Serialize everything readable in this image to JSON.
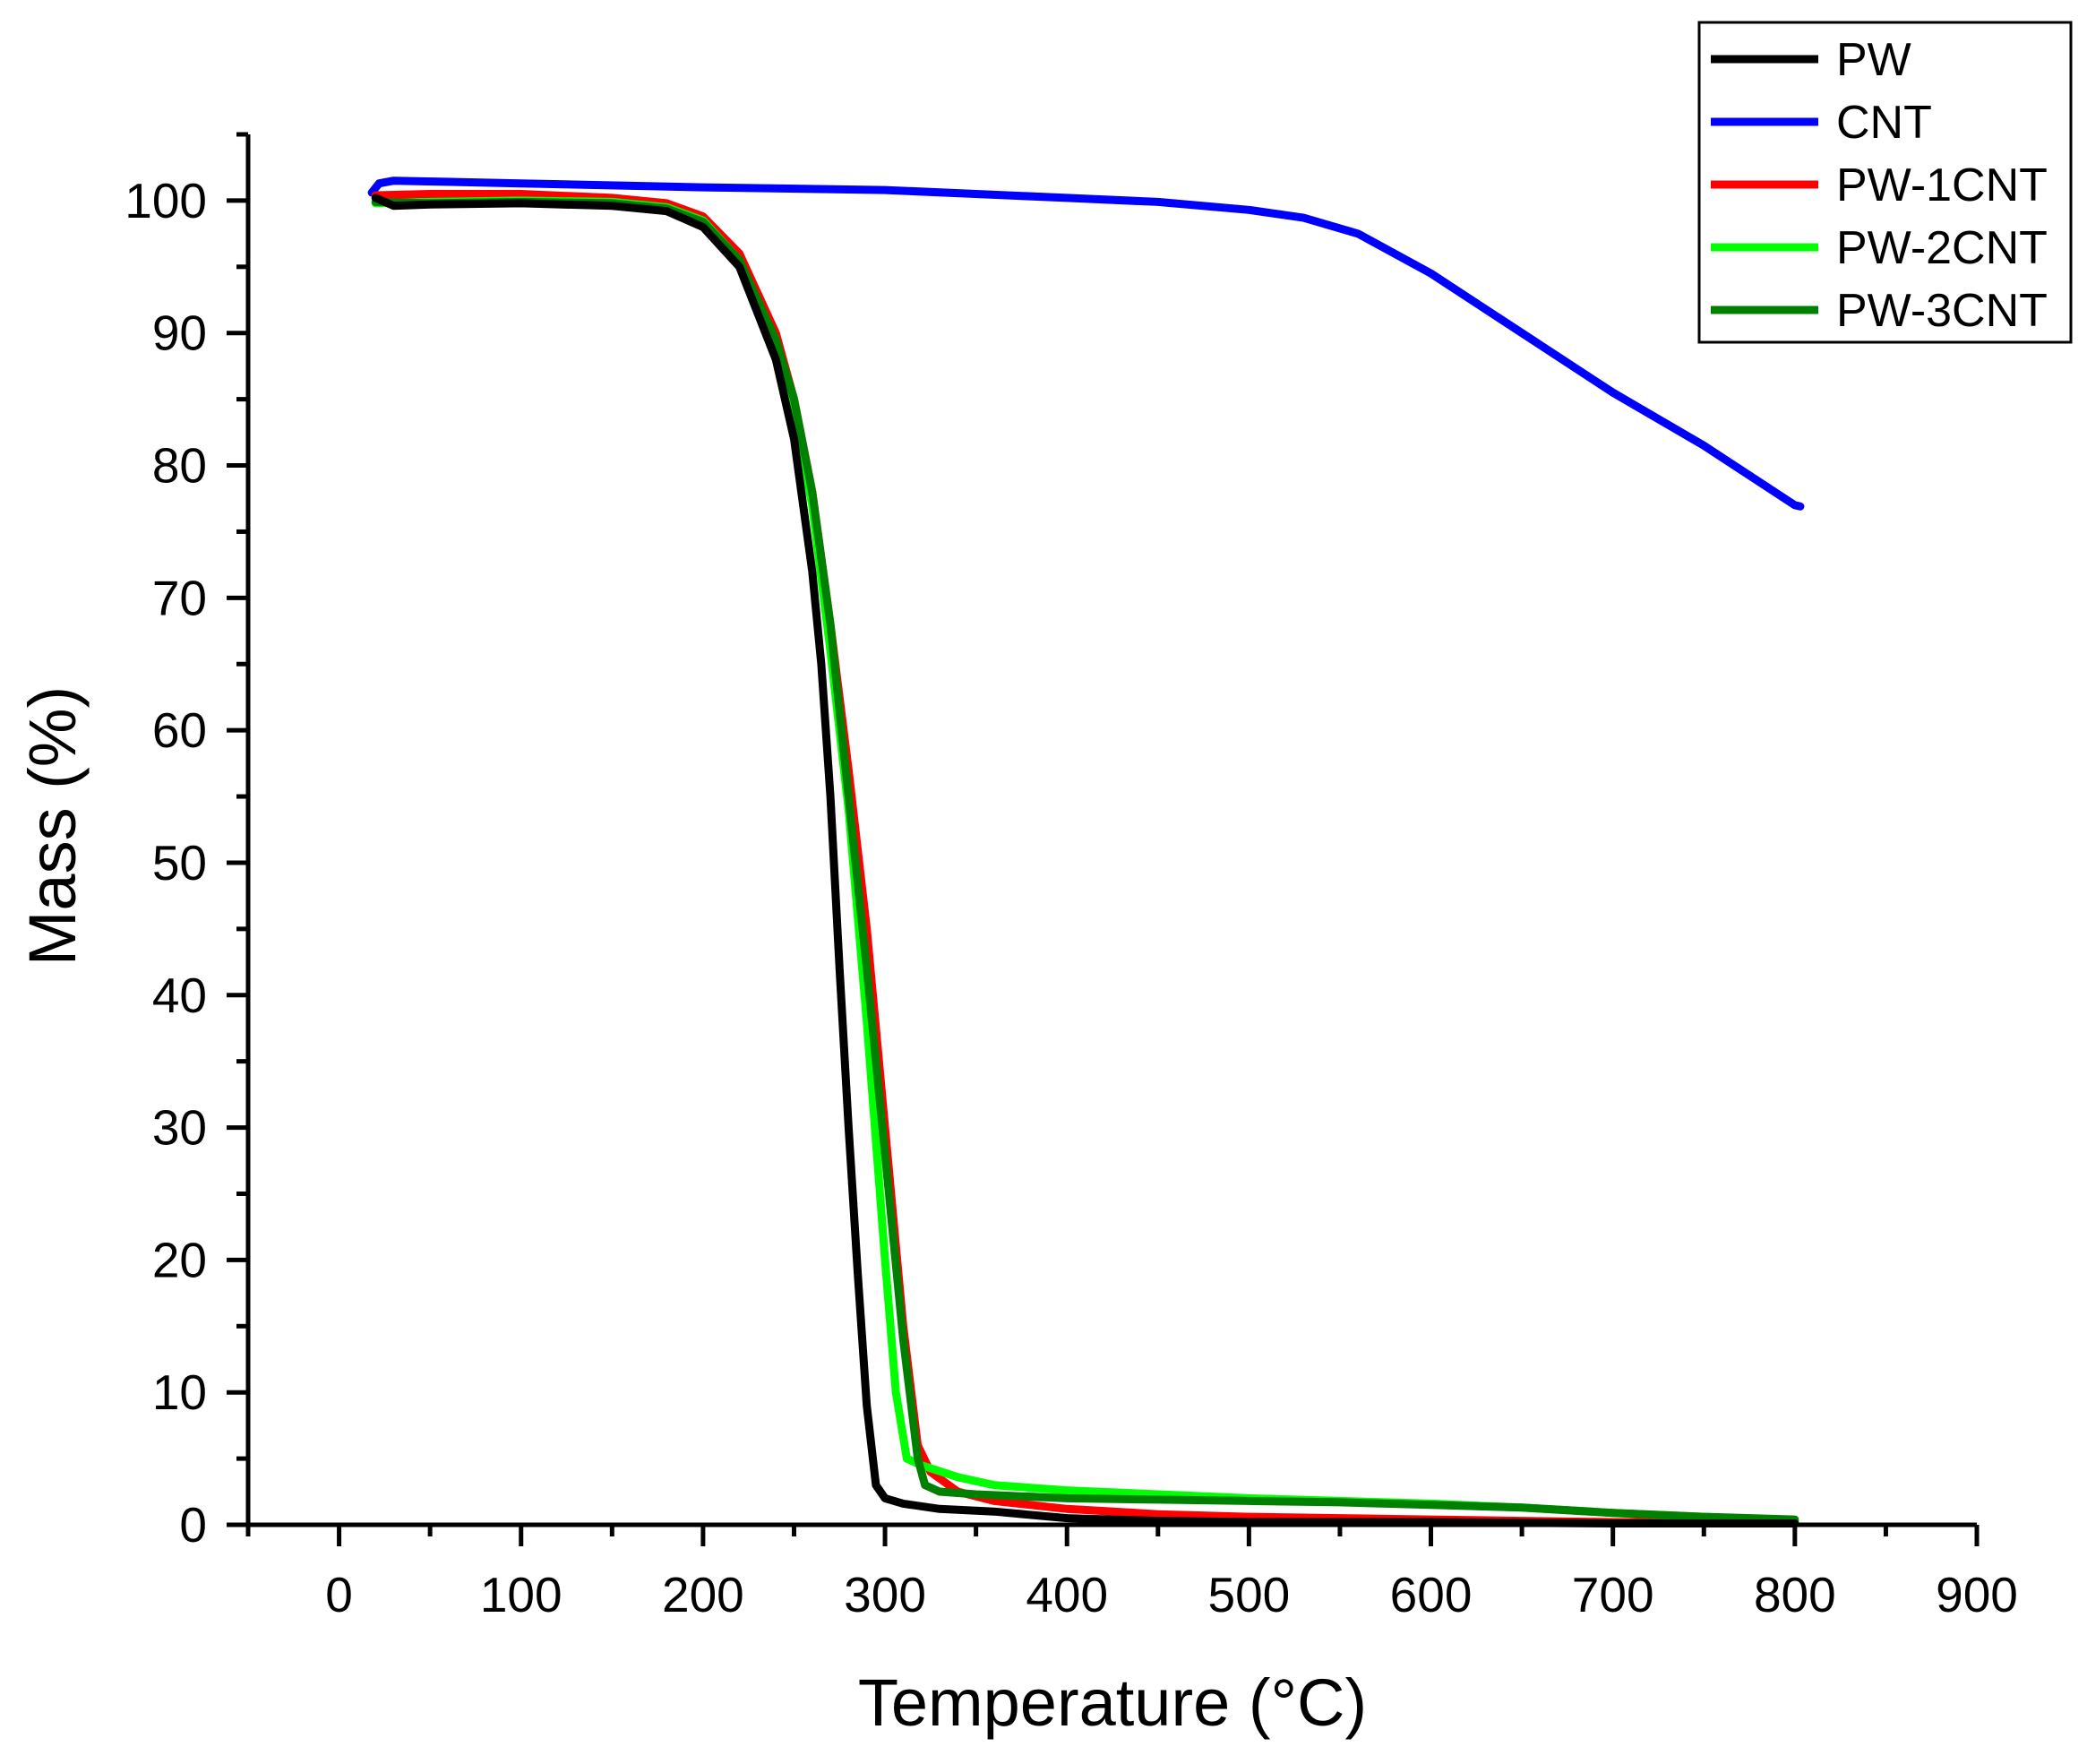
{
  "chart_data": {
    "type": "line",
    "title": "",
    "xlabel": "Temperature (°C)",
    "ylabel": "Mass (%)",
    "xlim": [
      -50,
      900
    ],
    "ylim": [
      0,
      105
    ],
    "x_ticks": [
      0,
      100,
      200,
      300,
      400,
      500,
      600,
      700,
      800,
      900
    ],
    "x_tick_labels": [
      "0",
      "100",
      "200",
      "300",
      "400",
      "500",
      "600",
      "700",
      "800",
      "900"
    ],
    "x_minor_ticks": [
      -50,
      50,
      150,
      250,
      350,
      450,
      550,
      650,
      750,
      850
    ],
    "y_ticks": [
      0,
      10,
      20,
      30,
      40,
      50,
      60,
      70,
      80,
      90,
      100
    ],
    "y_tick_labels": [
      "0",
      "10",
      "20",
      "30",
      "40",
      "50",
      "60",
      "70",
      "80",
      "90",
      "100"
    ],
    "y_minor_ticks": [
      5,
      15,
      25,
      35,
      45,
      55,
      65,
      75,
      85,
      95,
      105
    ],
    "grid": false,
    "legend_position": "top-right",
    "series": [
      {
        "name": "PW",
        "color": "#000000",
        "points": [
          [
            20,
            100.2
          ],
          [
            30,
            99.6
          ],
          [
            50,
            99.7
          ],
          [
            100,
            99.8
          ],
          [
            150,
            99.6
          ],
          [
            180,
            99.2
          ],
          [
            200,
            98.0
          ],
          [
            220,
            95.0
          ],
          [
            240,
            88.0
          ],
          [
            250,
            82.0
          ],
          [
            260,
            72.0
          ],
          [
            265,
            65.0
          ],
          [
            270,
            55.0
          ],
          [
            275,
            42.0
          ],
          [
            280,
            30.0
          ],
          [
            285,
            19.0
          ],
          [
            290,
            9.0
          ],
          [
            295,
            3.0
          ],
          [
            300,
            2.0
          ],
          [
            310,
            1.6
          ],
          [
            330,
            1.2
          ],
          [
            360,
            1.0
          ],
          [
            400,
            0.5
          ],
          [
            450,
            0.3
          ],
          [
            500,
            0.2
          ],
          [
            600,
            0.2
          ],
          [
            700,
            0.1
          ],
          [
            800,
            0.1
          ]
        ]
      },
      {
        "name": "CNT",
        "color": "#0000ff",
        "points": [
          [
            18,
            100.6
          ],
          [
            22,
            101.3
          ],
          [
            30,
            101.5
          ],
          [
            100,
            101.3
          ],
          [
            200,
            101.0
          ],
          [
            300,
            100.8
          ],
          [
            400,
            100.2
          ],
          [
            450,
            99.9
          ],
          [
            500,
            99.3
          ],
          [
            530,
            98.7
          ],
          [
            560,
            97.5
          ],
          [
            600,
            94.5
          ],
          [
            650,
            90.0
          ],
          [
            700,
            85.5
          ],
          [
            750,
            81.5
          ],
          [
            800,
            77.0
          ],
          [
            803,
            76.9
          ]
        ]
      },
      {
        "name": "PW-1CNT",
        "color": "#ff0000",
        "points": [
          [
            20,
            100.4
          ],
          [
            50,
            100.5
          ],
          [
            100,
            100.5
          ],
          [
            150,
            100.2
          ],
          [
            180,
            99.8
          ],
          [
            200,
            98.8
          ],
          [
            220,
            96.0
          ],
          [
            240,
            90.0
          ],
          [
            250,
            85.0
          ],
          [
            260,
            78.0
          ],
          [
            270,
            68.0
          ],
          [
            280,
            57.0
          ],
          [
            290,
            45.0
          ],
          [
            300,
            30.0
          ],
          [
            310,
            15.0
          ],
          [
            318,
            6.0
          ],
          [
            325,
            4.0
          ],
          [
            340,
            2.5
          ],
          [
            360,
            1.8
          ],
          [
            400,
            1.2
          ],
          [
            450,
            0.8
          ],
          [
            500,
            0.6
          ],
          [
            550,
            0.5
          ],
          [
            600,
            0.4
          ],
          [
            650,
            0.3
          ],
          [
            700,
            0.2
          ],
          [
            750,
            0.2
          ],
          [
            800,
            0.2
          ]
        ]
      },
      {
        "name": "PW-2CNT",
        "color": "#00ff00",
        "points": [
          [
            20,
            99.8
          ],
          [
            50,
            99.9
          ],
          [
            100,
            100.0
          ],
          [
            150,
            99.9
          ],
          [
            180,
            99.5
          ],
          [
            200,
            98.5
          ],
          [
            220,
            95.5
          ],
          [
            240,
            89.0
          ],
          [
            250,
            84.0
          ],
          [
            260,
            77.0
          ],
          [
            270,
            66.0
          ],
          [
            280,
            54.0
          ],
          [
            290,
            38.0
          ],
          [
            300,
            20.0
          ],
          [
            306,
            10.0
          ],
          [
            312,
            5.0
          ],
          [
            320,
            4.5
          ],
          [
            340,
            3.6
          ],
          [
            360,
            3.0
          ],
          [
            400,
            2.6
          ],
          [
            450,
            2.3
          ],
          [
            500,
            2.0
          ],
          [
            550,
            1.8
          ],
          [
            600,
            1.6
          ],
          [
            650,
            1.3
          ],
          [
            700,
            0.9
          ],
          [
            750,
            0.6
          ],
          [
            800,
            0.3
          ]
        ]
      },
      {
        "name": "PW-3CNT",
        "color": "#008000",
        "points": [
          [
            20,
            99.9
          ],
          [
            50,
            99.8
          ],
          [
            100,
            99.9
          ],
          [
            150,
            99.8
          ],
          [
            180,
            99.4
          ],
          [
            200,
            98.4
          ],
          [
            220,
            95.5
          ],
          [
            240,
            89.5
          ],
          [
            250,
            85.0
          ],
          [
            260,
            78.0
          ],
          [
            270,
            68.0
          ],
          [
            280,
            55.0
          ],
          [
            290,
            42.0
          ],
          [
            300,
            28.0
          ],
          [
            310,
            14.0
          ],
          [
            318,
            5.0
          ],
          [
            322,
            3.0
          ],
          [
            330,
            2.5
          ],
          [
            350,
            2.3
          ],
          [
            400,
            2.0
          ],
          [
            450,
            1.9
          ],
          [
            500,
            1.8
          ],
          [
            550,
            1.7
          ],
          [
            600,
            1.5
          ],
          [
            650,
            1.3
          ],
          [
            700,
            0.9
          ],
          [
            750,
            0.6
          ],
          [
            800,
            0.4
          ]
        ]
      }
    ]
  }
}
